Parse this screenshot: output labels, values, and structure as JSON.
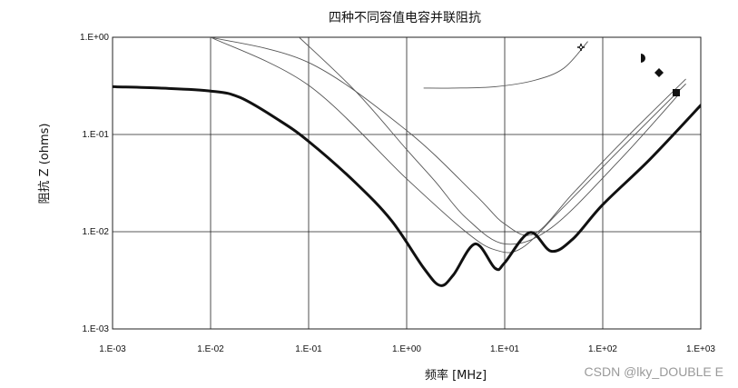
{
  "watermark": "CSDN @lky_DOUBLE E",
  "chart_data": {
    "type": "line",
    "title": "四种不同容值电容并联阻抗",
    "xlabel": "频率   [MHz]",
    "ylabel": "阻抗  Z (ohms)",
    "xscale": "log",
    "yscale": "log",
    "xlim": [
      0.001,
      1000
    ],
    "ylim": [
      0.001,
      1
    ],
    "x_ticks": [
      "1.E-03",
      "1.E-02",
      "1.E-01",
      "1.E+00",
      "1.E+01",
      "1.E+02",
      "1.E+03"
    ],
    "y_ticks": [
      "1.E+00",
      "1.E-01",
      "1.E-02",
      "1.E-03"
    ],
    "grid": true,
    "legend": "markers-top-right",
    "series": [
      {
        "marker": "cross",
        "emphasis": "thin",
        "x": [
          1.5,
          3,
          8,
          20,
          40,
          70
        ],
        "y": [
          0.3,
          0.3,
          0.31,
          0.36,
          0.48,
          0.9
        ]
      },
      {
        "marker": "half-circle",
        "emphasis": "thin",
        "x": [
          0.01,
          0.1,
          1,
          5,
          10,
          20,
          50,
          150,
          700
        ],
        "y": [
          1.0,
          0.55,
          0.11,
          0.024,
          0.012,
          0.0095,
          0.025,
          0.08,
          0.37
        ]
      },
      {
        "marker": "diamond",
        "emphasis": "thin",
        "x": [
          0.01,
          0.1,
          1,
          4,
          8,
          15,
          40,
          150,
          700
        ],
        "y": [
          1.0,
          0.32,
          0.035,
          0.01,
          0.0065,
          0.0068,
          0.018,
          0.07,
          0.33
        ]
      },
      {
        "marker": "square",
        "emphasis": "thin",
        "x": [
          0.08,
          0.3,
          1,
          2,
          4,
          10,
          30,
          150,
          600
        ],
        "y": [
          1.0,
          0.28,
          0.07,
          0.032,
          0.014,
          0.0075,
          0.011,
          0.055,
          0.26
        ]
      },
      {
        "marker": "none",
        "emphasis": "bold",
        "x": [
          0.001,
          0.003,
          0.01,
          0.02,
          0.05,
          0.1,
          0.3,
          0.7,
          1.5,
          2.2,
          3,
          5,
          8,
          10,
          18,
          30,
          50,
          100,
          300,
          1000
        ],
        "y": [
          0.31,
          0.3,
          0.28,
          0.24,
          0.14,
          0.085,
          0.032,
          0.013,
          0.0042,
          0.0028,
          0.0036,
          0.0075,
          0.0042,
          0.0048,
          0.0098,
          0.0063,
          0.0085,
          0.019,
          0.055,
          0.2
        ]
      }
    ]
  }
}
